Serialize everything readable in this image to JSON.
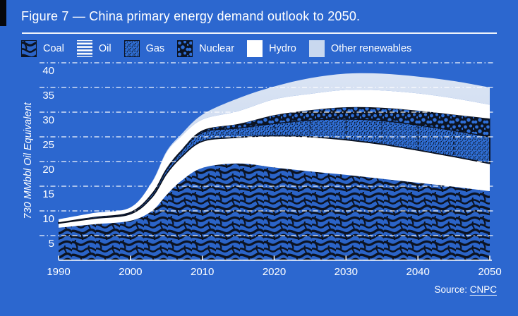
{
  "figure": {
    "title": "Figure 7 — China primary energy demand outlook to 2050."
  },
  "legend": {
    "items": [
      {
        "label": "Coal",
        "swatch": "coal-pattern"
      },
      {
        "label": "Oil",
        "swatch": "oil-stripes"
      },
      {
        "label": "Gas",
        "swatch": "gas-speckle-pattern"
      },
      {
        "label": "Nuclear",
        "swatch": "nuclear-blob-pattern"
      },
      {
        "label": "Hydro",
        "swatch": "solid-white"
      },
      {
        "label": "Other renewables",
        "swatch": "solid-light-blue"
      }
    ]
  },
  "chart_data": {
    "type": "area",
    "stacked": true,
    "title": "China primary energy demand outlook to 2050",
    "ylabel": "730 MMbbl Oil Equivalent",
    "x": [
      1990,
      1995,
      2000,
      2003,
      2005,
      2007,
      2010,
      2015,
      2020,
      2025,
      2030,
      2035,
      2040,
      2045,
      2050
    ],
    "x_ticks": [
      1990,
      2000,
      2010,
      2020,
      2030,
      2040,
      2050
    ],
    "y_ticks": [
      5,
      10,
      15,
      20,
      25,
      30,
      35,
      40
    ],
    "xlim": [
      1990,
      2050
    ],
    "ylim": [
      0,
      42
    ],
    "grid": "horizontal-white-dash-dot",
    "legend_position": "top",
    "series": [
      {
        "name": "Coal",
        "fill": "coal-pattern",
        "values": [
          6.6,
          7.3,
          8.0,
          10.0,
          13.2,
          16.0,
          18.7,
          19.6,
          18.8,
          18.0,
          17.3,
          16.5,
          15.7,
          14.9,
          14.0
        ]
      },
      {
        "name": "Oil",
        "fill": "white",
        "values": [
          0.9,
          1.2,
          1.4,
          2.8,
          4.3,
          4.8,
          5.4,
          5.3,
          6.4,
          7.0,
          7.1,
          7.0,
          6.6,
          6.1,
          5.6
        ]
      },
      {
        "name": "Gas",
        "fill": "gas-speckle-pattern",
        "values": [
          0.2,
          0.3,
          0.3,
          0.6,
          0.8,
          1.1,
          1.8,
          1.9,
          2.5,
          3.4,
          4.2,
          4.8,
          5.1,
          5.3,
          5.4
        ]
      },
      {
        "name": "Nuclear",
        "fill": "nuclear-blob-pattern",
        "values": [
          0.0,
          0.0,
          0.1,
          0.2,
          0.3,
          0.3,
          0.4,
          0.8,
          1.7,
          2.0,
          2.4,
          2.6,
          2.9,
          3.2,
          3.7
        ]
      },
      {
        "name": "Hydro",
        "fill": "white",
        "values": [
          0.6,
          0.8,
          0.9,
          2.2,
          3.2,
          2.8,
          2.2,
          2.6,
          3.2,
          3.3,
          3.5,
          3.5,
          3.5,
          3.3,
          2.8
        ]
      },
      {
        "name": "Other renewables",
        "fill": "light-blue",
        "values": [
          0.0,
          0.0,
          0.0,
          0.1,
          0.2,
          0.4,
          1.0,
          2.6,
          2.6,
          3.2,
          3.3,
          3.4,
          3.4,
          3.5,
          3.5
        ]
      }
    ],
    "gas_band_vertical_dash_years": [
      2015,
      2020,
      2025,
      2030,
      2035,
      2040,
      2045,
      2050
    ],
    "colors": {
      "background": "#2c67cf",
      "band_blue": "#2f6ed8",
      "coal_blue": "#2b64c8",
      "pattern_dark": "#0c1322",
      "light_blue_top": "#dae4f4",
      "light_blue_bottom": "#c3d3ec",
      "white": "#ffffff",
      "grid": "#ffffff"
    }
  },
  "source": {
    "label": "Source:",
    "link_text": "CNPC"
  }
}
